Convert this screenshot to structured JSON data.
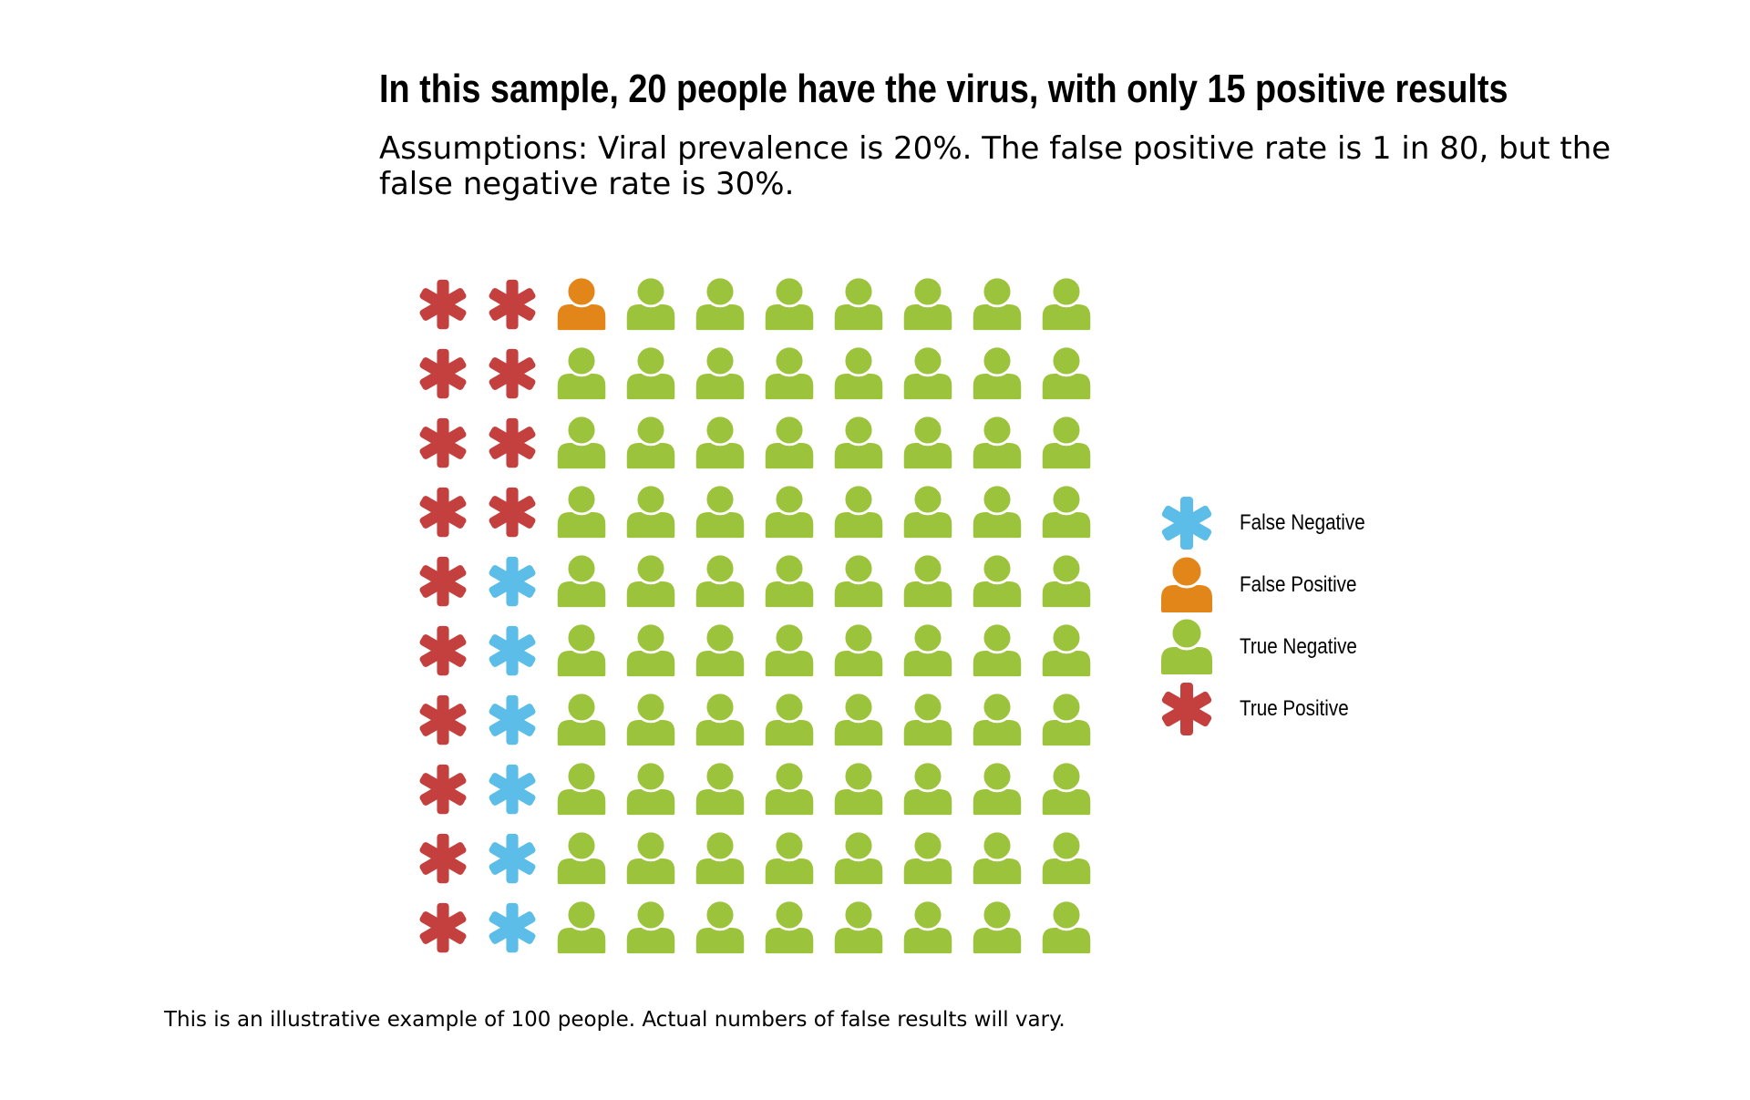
{
  "chart_data": {
    "type": "waffle",
    "title": "In this sample, 20 people have the virus, with only 15 positive results",
    "subtitle": "Assumptions: Viral prevalence is 20%. The false positive rate is 1 in 80, but the false negative rate is 30%.",
    "footnote": "This is an illustrative example of 100 people. Actual numbers of false results will vary.",
    "total": 100,
    "rows": 10,
    "columns": 10,
    "fill_order": "column-major",
    "categories": [
      {
        "key": "true_positive",
        "label": "True Positive",
        "count": 14,
        "color": "#c4403f",
        "icon": "asterisk-icon"
      },
      {
        "key": "false_negative",
        "label": "False Negative",
        "count": 6,
        "color": "#5bbde8",
        "icon": "asterisk-icon"
      },
      {
        "key": "false_positive",
        "label": "False Positive",
        "count": 1,
        "color": "#e3861a",
        "icon": "person-icon"
      },
      {
        "key": "true_negative",
        "label": "True Negative",
        "count": 79,
        "color": "#9bc33c",
        "icon": "person-icon"
      }
    ],
    "legend": {
      "placement": "right",
      "order": [
        "false_negative",
        "false_positive",
        "true_negative",
        "true_positive"
      ]
    }
  }
}
